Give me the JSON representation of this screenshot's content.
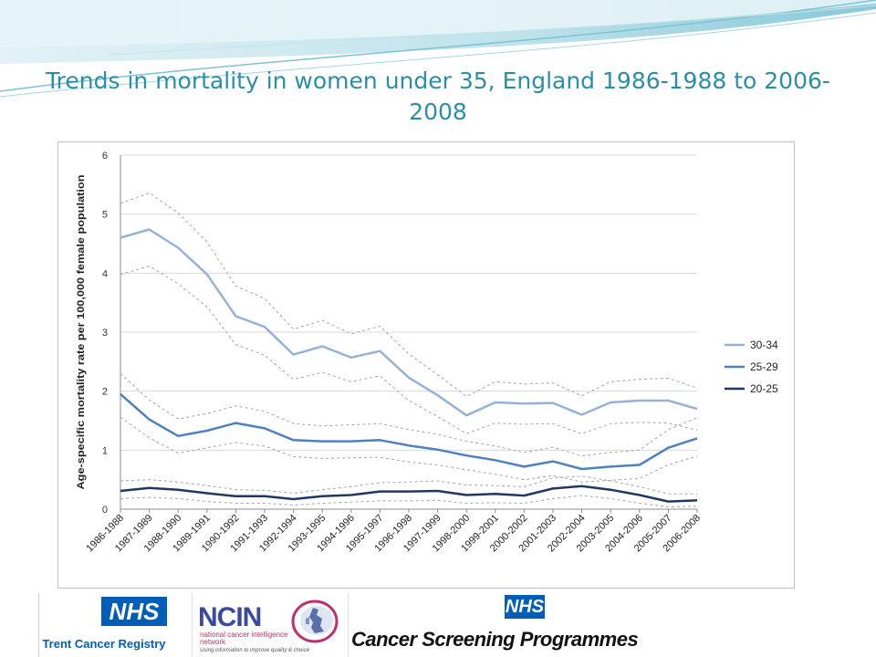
{
  "slide": {
    "title": "Trends in mortality in women under 35, England 1986-1988 to 2006-2008"
  },
  "chart_data": {
    "type": "line",
    "title": "",
    "xlabel": "",
    "ylabel": "Age-specific mortality rate per 100,000 female population",
    "ylim": [
      0,
      6
    ],
    "yticks": [
      "0",
      "1",
      "2",
      "3",
      "4",
      "5",
      "6"
    ],
    "grid": true,
    "legend_position": "right",
    "categories": [
      "1986-1988",
      "1987-1989",
      "1988-1990",
      "1989-1991",
      "1990-1992",
      "1991-1993",
      "1992-1994",
      "1993-1995",
      "1994-1996",
      "1995-1997",
      "1996-1998",
      "1997-1999",
      "1998-2000",
      "1999-2001",
      "2000-2002",
      "2001-2003",
      "2002-2004",
      "2003-2005",
      "2004-2006",
      "2005-2007",
      "2006-2008"
    ],
    "series": [
      {
        "name": "30-34",
        "color": "#95b3d7",
        "values": [
          4.6,
          4.74,
          4.43,
          3.98,
          3.27,
          3.09,
          2.62,
          2.76,
          2.57,
          2.68,
          2.23,
          1.93,
          1.59,
          1.81,
          1.79,
          1.8,
          1.6,
          1.81,
          1.84,
          1.84,
          1.7
        ],
        "upper": [
          5.18,
          5.36,
          5.02,
          4.53,
          3.78,
          3.57,
          3.05,
          3.2,
          2.97,
          3.1,
          2.63,
          2.28,
          1.91,
          2.16,
          2.12,
          2.14,
          1.92,
          2.16,
          2.2,
          2.22,
          2.05
        ],
        "lower": [
          3.98,
          4.12,
          3.82,
          3.43,
          2.79,
          2.61,
          2.2,
          2.32,
          2.16,
          2.26,
          1.84,
          1.57,
          1.28,
          1.46,
          1.44,
          1.45,
          1.28,
          1.45,
          1.47,
          1.46,
          1.34
        ]
      },
      {
        "name": "25-29",
        "color": "#4f81bd",
        "values": [
          1.95,
          1.52,
          1.24,
          1.33,
          1.46,
          1.37,
          1.17,
          1.15,
          1.15,
          1.17,
          1.08,
          1.01,
          0.91,
          0.83,
          0.72,
          0.81,
          0.68,
          0.72,
          0.75,
          1.04,
          1.2
        ],
        "upper": [
          2.3,
          1.85,
          1.53,
          1.62,
          1.75,
          1.66,
          1.45,
          1.41,
          1.43,
          1.45,
          1.35,
          1.27,
          1.15,
          1.07,
          0.96,
          1.05,
          0.9,
          0.96,
          1.0,
          1.35,
          1.55
        ],
        "lower": [
          1.56,
          1.21,
          0.95,
          1.04,
          1.13,
          1.07,
          0.89,
          0.86,
          0.87,
          0.88,
          0.8,
          0.75,
          0.67,
          0.59,
          0.5,
          0.57,
          0.46,
          0.49,
          0.52,
          0.75,
          0.9
        ]
      },
      {
        "name": "20-25",
        "color": "#1f3864",
        "values": [
          0.31,
          0.36,
          0.33,
          0.27,
          0.22,
          0.22,
          0.17,
          0.22,
          0.24,
          0.3,
          0.3,
          0.31,
          0.24,
          0.26,
          0.23,
          0.35,
          0.39,
          0.33,
          0.24,
          0.13,
          0.15
        ],
        "upper": [
          0.48,
          0.5,
          0.46,
          0.4,
          0.33,
          0.32,
          0.27,
          0.33,
          0.38,
          0.45,
          0.46,
          0.48,
          0.41,
          0.4,
          0.38,
          0.53,
          0.56,
          0.48,
          0.38,
          0.26,
          0.26
        ],
        "lower": [
          0.18,
          0.2,
          0.18,
          0.13,
          0.1,
          0.1,
          0.07,
          0.1,
          0.12,
          0.14,
          0.14,
          0.15,
          0.1,
          0.11,
          0.1,
          0.18,
          0.23,
          0.18,
          0.1,
          0.04,
          0.05
        ]
      }
    ]
  },
  "logos": {
    "trent_nhs": "NHS",
    "trent_name": "Trent Cancer Registry",
    "ncin_main": "NCIN",
    "ncin_sub": "national cancer intelligence network",
    "ncin_tagline": "Using information to improve quality & choice",
    "screening_nhs": "NHS",
    "screening_name": "Cancer Screening Programmes"
  }
}
